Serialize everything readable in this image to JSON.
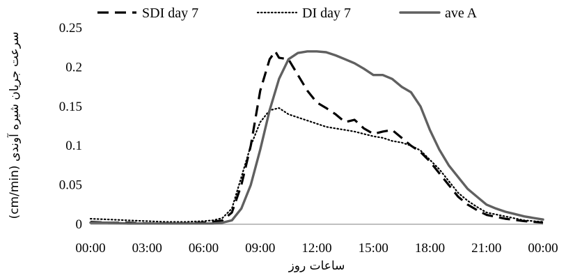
{
  "chart_data": {
    "type": "line",
    "title": "",
    "xlabel": "ساعات روز",
    "ylabel": "سرعت جریان شیره آوندی (cm/min)",
    "xlim": [
      0,
      24
    ],
    "ylim": [
      0,
      0.25
    ],
    "x_ticks": [
      "00:00",
      "03:00",
      "06:00",
      "09:00",
      "12:00",
      "15:00",
      "18:00",
      "21:00",
      "00:00"
    ],
    "y_ticks": [
      "0",
      "0.05",
      "0.1",
      "0.15",
      "0.2",
      "0.25"
    ],
    "y_tick_values": [
      0,
      0.05,
      0.1,
      0.15,
      0.2,
      0.25
    ],
    "legend_position": "top",
    "grid": false,
    "series": [
      {
        "name": "SDI day 7",
        "style": "dashed",
        "color": "#000000",
        "x": [
          0,
          1,
          2,
          3,
          4,
          5,
          6,
          6.5,
          7,
          7.5,
          8,
          8.5,
          9,
          9.5,
          9.8,
          10,
          10.5,
          11,
          11.5,
          12,
          12.5,
          13,
          13.5,
          14,
          14.5,
          15,
          15.5,
          16,
          16.5,
          17,
          17.5,
          18,
          18.5,
          19,
          19.5,
          20,
          20.5,
          21,
          22,
          23,
          24
        ],
        "y": [
          0.003,
          0.002,
          0.002,
          0.001,
          0.001,
          0.001,
          0.002,
          0.003,
          0.005,
          0.015,
          0.05,
          0.1,
          0.17,
          0.21,
          0.22,
          0.212,
          0.21,
          0.19,
          0.17,
          0.155,
          0.148,
          0.14,
          0.13,
          0.133,
          0.122,
          0.115,
          0.118,
          0.12,
          0.11,
          0.1,
          0.092,
          0.08,
          0.065,
          0.05,
          0.035,
          0.025,
          0.018,
          0.012,
          0.007,
          0.004,
          0.002
        ]
      },
      {
        "name": "DI day 7",
        "style": "dotted",
        "color": "#000000",
        "x": [
          0,
          1,
          2,
          3,
          4,
          5,
          6,
          6.5,
          7,
          7.5,
          8,
          8.5,
          9,
          9.5,
          10,
          10.5,
          11,
          11.5,
          12,
          12.5,
          13,
          13.5,
          14,
          14.5,
          15,
          15.5,
          16,
          16.5,
          17,
          17.5,
          18,
          18.5,
          19,
          19.5,
          20,
          20.5,
          21,
          22,
          23,
          24
        ],
        "y": [
          0.007,
          0.006,
          0.005,
          0.004,
          0.003,
          0.003,
          0.004,
          0.005,
          0.008,
          0.02,
          0.06,
          0.1,
          0.13,
          0.145,
          0.148,
          0.14,
          0.136,
          0.132,
          0.128,
          0.124,
          0.122,
          0.12,
          0.118,
          0.115,
          0.112,
          0.11,
          0.106,
          0.104,
          0.1,
          0.094,
          0.082,
          0.07,
          0.055,
          0.04,
          0.03,
          0.022,
          0.015,
          0.01,
          0.005,
          0.003
        ]
      },
      {
        "name": "ave A",
        "style": "solid",
        "color": "#606060",
        "x": [
          0,
          1,
          2,
          3,
          4,
          5,
          6,
          6.5,
          7,
          7.5,
          8,
          8.5,
          9,
          9.5,
          10,
          10.5,
          11,
          11.5,
          12,
          12.5,
          13,
          13.5,
          14,
          14.5,
          15,
          15.5,
          16,
          16.5,
          17,
          17.5,
          18,
          18.5,
          19,
          19.5,
          20,
          20.5,
          21,
          21.5,
          22,
          22.5,
          23,
          23.5,
          24
        ],
        "y": [
          0.002,
          0.002,
          0.001,
          0.001,
          0.001,
          0.001,
          0.001,
          0.001,
          0.002,
          0.005,
          0.02,
          0.05,
          0.095,
          0.145,
          0.185,
          0.21,
          0.218,
          0.22,
          0.22,
          0.219,
          0.215,
          0.21,
          0.205,
          0.198,
          0.19,
          0.19,
          0.185,
          0.175,
          0.168,
          0.15,
          0.12,
          0.095,
          0.075,
          0.06,
          0.045,
          0.035,
          0.025,
          0.02,
          0.016,
          0.013,
          0.01,
          0.008,
          0.006
        ]
      }
    ]
  }
}
